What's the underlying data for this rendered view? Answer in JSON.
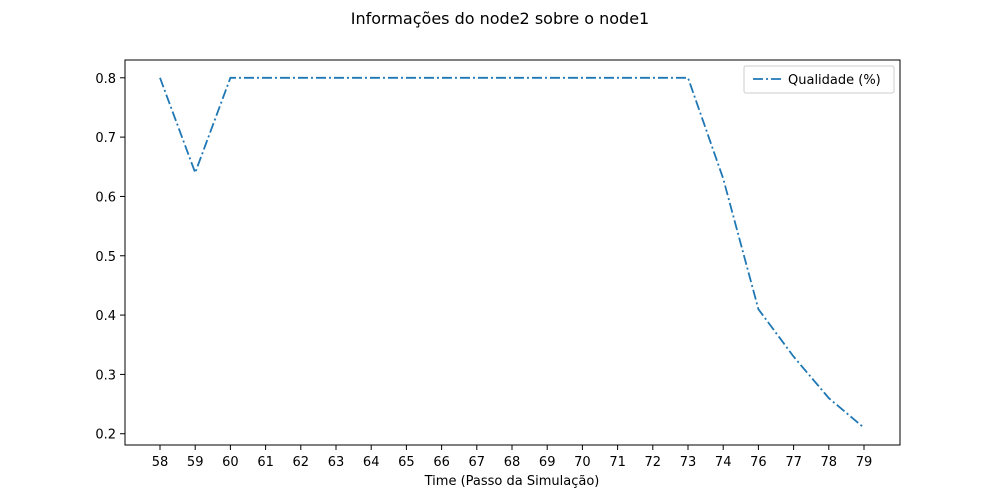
{
  "chart_data": {
    "type": "line",
    "title": "Informações do node2 sobre o node1",
    "xlabel": "Time (Passo da Simulação)",
    "ylabel": "",
    "x": [
      "58",
      "59",
      "60",
      "61",
      "62",
      "63",
      "64",
      "65",
      "66",
      "67",
      "68",
      "69",
      "70",
      "71",
      "72",
      "73",
      "74",
      "76",
      "77",
      "78",
      "79"
    ],
    "series": [
      {
        "name": "Qualidade (%)",
        "values": [
          0.8,
          0.64,
          0.8,
          0.8,
          0.8,
          0.8,
          0.8,
          0.8,
          0.8,
          0.8,
          0.8,
          0.8,
          0.8,
          0.8,
          0.8,
          0.8,
          0.63,
          0.41,
          0.33,
          0.26,
          0.21
        ],
        "color": "#1f77b4",
        "linestyle": "dashdot"
      }
    ],
    "yticks": [
      "0.2",
      "0.3",
      "0.4",
      "0.5",
      "0.6",
      "0.7",
      "0.8"
    ],
    "ylim": [
      0.181,
      0.83
    ],
    "grid": false,
    "legend_position": "top-right"
  }
}
